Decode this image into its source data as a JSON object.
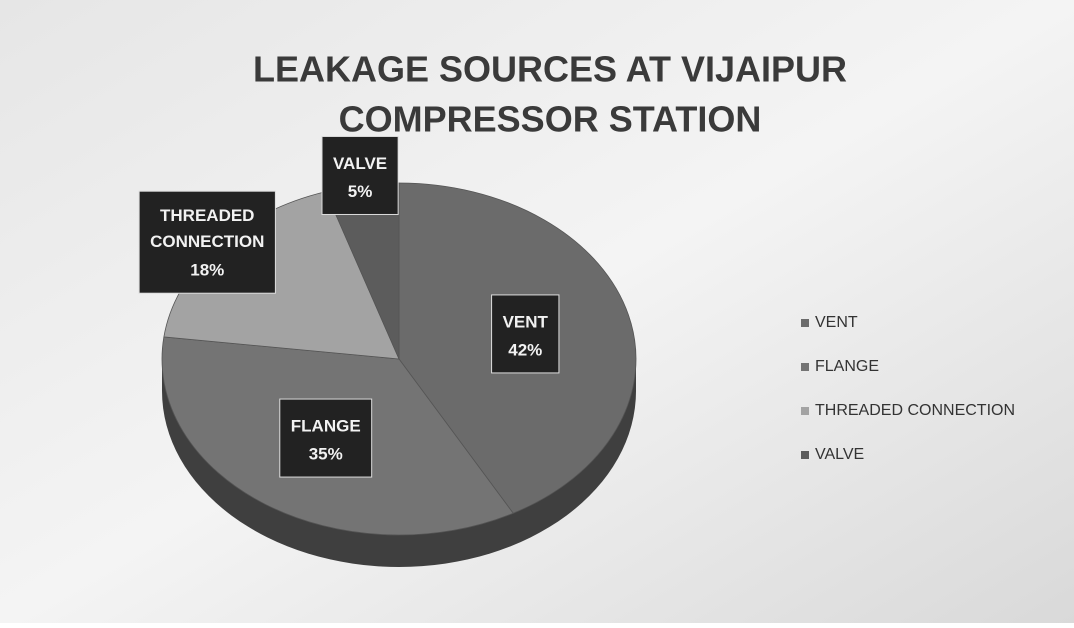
{
  "chart_data": {
    "type": "pie",
    "title": [
      "LEAKAGE SOURCES AT VIJAIPUR",
      "COMPRESSOR STATION"
    ],
    "categories": [
      "VENT",
      "FLANGE",
      "THREADED CONNECTION",
      "VALVE"
    ],
    "values": [
      42,
      35,
      18,
      5
    ],
    "value_labels": [
      "42%",
      "35%",
      "18%",
      "5%"
    ],
    "colors": [
      "#6b6b6b",
      "#747474",
      "#a3a3a3",
      "#5c5c5c"
    ],
    "legend": "right"
  }
}
